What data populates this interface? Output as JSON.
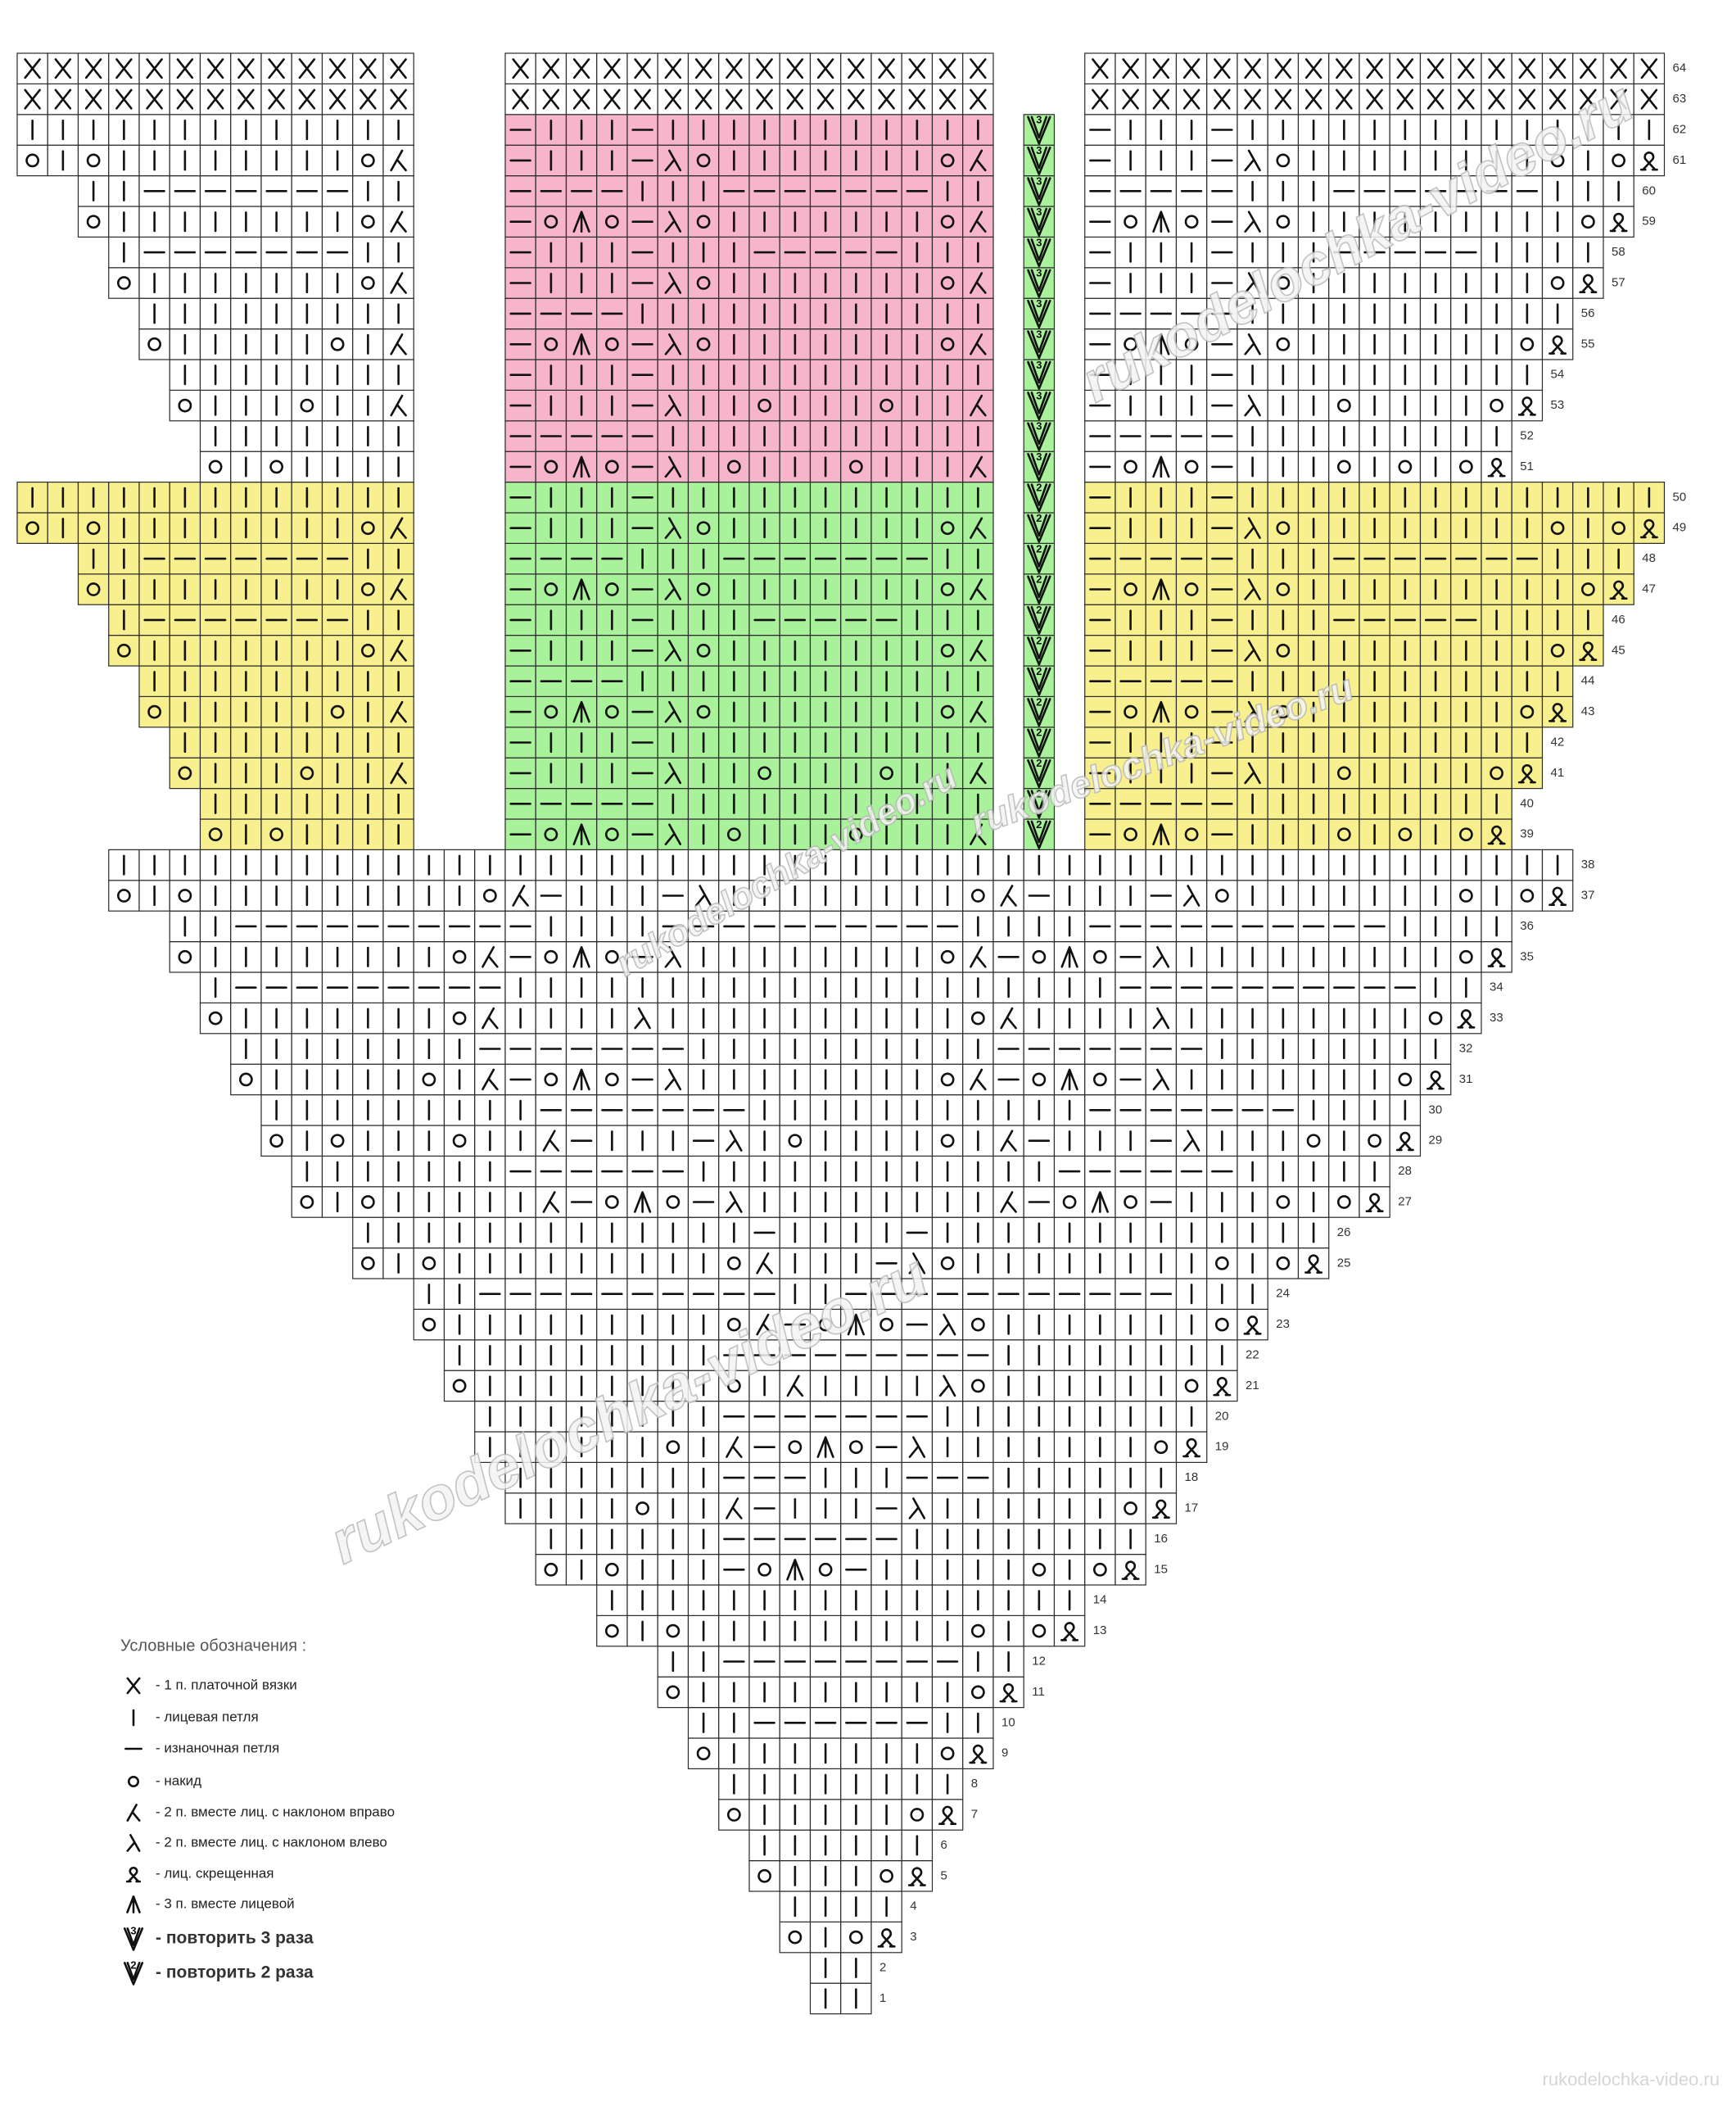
{
  "watermark": "rukodelochka-video.ru",
  "colors": {
    "w": "#ffffff",
    "y": "#f8f08e",
    "g": "#a9f29b",
    "p": "#f7b5cb"
  },
  "legend": {
    "title": "Условные обозначения :",
    "items": [
      {
        "symbol": "X",
        "text": "- 1 п. платочной вязки"
      },
      {
        "symbol": "k",
        "text": "- лицевая петля"
      },
      {
        "symbol": "p",
        "text": "- изнаночная петля"
      },
      {
        "symbol": "o",
        "text": "- накид"
      },
      {
        "symbol": "r",
        "text": "- 2 п. вместе лиц. с наклоном вправо"
      },
      {
        "symbol": "l",
        "text": "- 2 п. вместе лиц. с наклоном влево"
      },
      {
        "symbol": "q",
        "text": "- лиц. скрещенная"
      },
      {
        "symbol": "t",
        "text": "- 3 п. вместе лицевой"
      },
      {
        "symbol": "b",
        "text": "- повторить 3 раза",
        "count": 3
      },
      {
        "symbol": "a",
        "text": "- повторить 2 раза",
        "count": 2
      }
    ]
  },
  "rows": [
    {
      "number": 1,
      "cells": [
        "kk",
        "w"
      ]
    },
    {
      "number": 2,
      "cells": [
        "kk",
        "w"
      ]
    },
    {
      "number": 3,
      "cells": [
        "okoq",
        "w"
      ]
    },
    {
      "number": 4,
      "cells": [
        "kkkk",
        "w"
      ]
    },
    {
      "number": 5,
      "cells": [
        "okkkoq",
        "w"
      ]
    },
    {
      "number": 6,
      "cells": [
        "kkkkkk",
        "w"
      ]
    },
    {
      "number": 7,
      "cells": [
        "okkkkkoq",
        "w"
      ]
    },
    {
      "number": 8,
      "cells": [
        "kkkkkkkk",
        "w"
      ]
    },
    {
      "number": 9,
      "cells": [
        "okkkkkkkoq",
        "w"
      ]
    },
    {
      "number": 10,
      "cells": [
        "kkppppppkk",
        "w"
      ]
    },
    {
      "number": 11,
      "cells": [
        "okkkkkkkkkoq",
        "w"
      ]
    },
    {
      "number": 12,
      "cells": [
        "kkppppppppkk",
        "w"
      ]
    },
    {
      "number": 13,
      "cells": [
        "okokkkkkkkkkokoq",
        "w"
      ]
    },
    {
      "number": 14,
      "cells": [
        "kkkkkkkkkkkkkkkk",
        "w"
      ]
    },
    {
      "number": 15,
      "cells": [
        "okokkkpotopkkkkkokoq",
        "w"
      ]
    },
    {
      "number": 16,
      "cells": [
        "kkkkkkppppppkkkkkkkk",
        "w"
      ]
    },
    {
      "number": 17,
      "cells": [
        "kkkkokkrpkkkplkkkkkkoq",
        "w"
      ]
    },
    {
      "number": 18,
      "cells": [
        "kkkkkkkpppkkkpppkkkkkk",
        "w"
      ]
    },
    {
      "number": 19,
      "cells": [
        "kkkkkkokrpotoplkkkkkkkoq",
        "w"
      ]
    },
    {
      "number": 20,
      "cells": [
        "kkkkkkkkpppppppkkkkkkkkk",
        "w"
      ]
    },
    {
      "number": 21,
      "cells": [
        "okkkkkkkkokrkkkklokkkkkkoq",
        "w"
      ]
    },
    {
      "number": 22,
      "cells": [
        "kkkkkkkkkpppppppppkkkkkkkk",
        "w"
      ]
    },
    {
      "number": 23,
      "cells": [
        "okkkkkkkkkorpotoplokkkkkkkoq",
        "w"
      ]
    },
    {
      "number": 24,
      "cells": [
        "kkppppppppppkkpppppppppppkkk",
        "w"
      ]
    },
    {
      "number": 25,
      "cells": [
        "okokkkkkkkkkorkkkplokkkkkkkkokoq",
        "w"
      ]
    },
    {
      "number": 26,
      "cells": [
        "kkkkkkkkkkkkkpkkkkpkkkkkkkkkkkkk",
        "w"
      ]
    },
    {
      "number": 27,
      "cells": [
        "okokkkkkrpotoplkkkkkkkkrpotopkkkokoq",
        "w"
      ]
    },
    {
      "number": 28,
      "cells": [
        "kkkkkkkppppppkkkkkkkkkkkkppppppkkkkk",
        "w"
      ]
    },
    {
      "number": 29,
      "cells": [
        "okokkkokkrpkkkplkokkkkokrpkkkplkkkokoq",
        "w"
      ]
    },
    {
      "number": 30,
      "cells": [
        "kkkkkkkkkpppppppkkkkkkkkkkkpppppppkkkk",
        "w"
      ]
    },
    {
      "number": 31,
      "cells": [
        "okkkkkokrpotoplkkkkkkkkorpotoplkkkkkkkoq",
        "w"
      ]
    },
    {
      "number": 32,
      "cells": [
        "kkkkkkkkpppppppkkkkkkkkkkpppppppkkkkkkkk",
        "w"
      ]
    },
    {
      "number": 33,
      "cells": [
        "okkkkkkkorkkkklkkkkkkkkkkorkkkklkkkkkkkkoq",
        "w"
      ]
    },
    {
      "number": 34,
      "cells": [
        "kpppppppppkkkkkkkkkkkkkkkkkkkkppppppppppkk",
        "w"
      ]
    },
    {
      "number": 35,
      "cells": [
        "okkkkkkkkorpotoplkkkkkkkkorpotoplkkkkkkkkkoq",
        "w"
      ]
    },
    {
      "number": 36,
      "cells": [
        "kkppppppppppkkkkppppppppppkkkkppppppppppkkkk",
        "w"
      ]
    },
    {
      "number": 37,
      "cells": [
        "okokkkkkkkkkorpkkkplkkkkkkkkorpkkkplokkkkkkkokoq",
        "w"
      ]
    },
    {
      "number": 38,
      "cells": [
        "kkkkkkkkkkkkkkkkkkkkkkkkkkkkkkkkkkkkkkkkkkkkkkkk",
        "w"
      ]
    },
    {
      "number": 39,
      "left": [
        "okokkkk",
        "y"
      ],
      "middle": [
        "potoplkokkkokkkr",
        "g"
      ],
      "repeat": [
        "a",
        "g"
      ],
      "right": [
        "potopkkkokokoq",
        "y"
      ]
    },
    {
      "number": 40,
      "left": [
        "kkkkkkk",
        "y"
      ],
      "middle": [
        "pppppkkkkkkkkkkk",
        "g"
      ],
      "repeat": [
        "a",
        "g"
      ],
      "right": [
        "pppppkkkkkkkkk",
        "y"
      ]
    },
    {
      "number": 41,
      "left": [
        "okkkokkr",
        "y"
      ],
      "middle": [
        "pkkkplkkokkkokkr",
        "g"
      ],
      "repeat": [
        "a",
        "g"
      ],
      "right": [
        "pkkkplkkokkkkoq",
        "y"
      ]
    },
    {
      "number": 42,
      "left": [
        "kkkkkkkk",
        "y"
      ],
      "middle": [
        "pkkkpkkkkkkkkkkk",
        "g"
      ],
      "repeat": [
        "a",
        "g"
      ],
      "right": [
        "pkkkpkkkkkkkkkk",
        "y"
      ]
    },
    {
      "number": 43,
      "left": [
        "okkkkkokr",
        "y"
      ],
      "middle": [
        "potoplokkkkkkkor",
        "g"
      ],
      "repeat": [
        "a",
        "g"
      ],
      "right": [
        "potoplokkkkkkkoq",
        "y"
      ]
    },
    {
      "number": 44,
      "left": [
        "kkkkkkkkk",
        "y"
      ],
      "middle": [
        "ppppkkkkkkkkkkkk",
        "g"
      ],
      "repeat": [
        "a",
        "g"
      ],
      "right": [
        "pppppkkkkkkkkkkk",
        "y"
      ]
    },
    {
      "number": 45,
      "left": [
        "okkkkkkkor",
        "y"
      ],
      "middle": [
        "pkkkplokkkkkkkor",
        "g"
      ],
      "repeat": [
        "a",
        "g"
      ],
      "right": [
        "pkkkplokkkkkkkkoq",
        "y"
      ]
    },
    {
      "number": 46,
      "left": [
        "kpppppppkk",
        "y"
      ],
      "middle": [
        "pkkkpkkkpppppkkk",
        "g"
      ],
      "repeat": [
        "a",
        "g"
      ],
      "right": [
        "pkkkpkkkpppppkkkk",
        "y"
      ]
    },
    {
      "number": 47,
      "left": [
        "okkkkkkkkor",
        "y"
      ],
      "middle": [
        "potoplokkkkkkkor",
        "g"
      ],
      "repeat": [
        "a",
        "g"
      ],
      "right": [
        "potoplokkkkkkkkkoq",
        "y"
      ]
    },
    {
      "number": 48,
      "left": [
        "kkpppppppkk",
        "y"
      ],
      "middle": [
        "ppppkkkpppppppkk",
        "g"
      ],
      "repeat": [
        "a",
        "g"
      ],
      "right": [
        "pppppkkkpppppppkkk",
        "y"
      ]
    },
    {
      "number": 49,
      "left": [
        "okokkkkkkkkor",
        "y"
      ],
      "middle": [
        "pkkkplokkkkkkkor",
        "g"
      ],
      "repeat": [
        "a",
        "g"
      ],
      "right": [
        "pkkkplokkkkkkkkokoq",
        "y"
      ]
    },
    {
      "number": 50,
      "left": [
        "kkkkkkkkkkkkk",
        "y"
      ],
      "middle": [
        "pkkkpkkkkkkkkkkk",
        "g"
      ],
      "repeat": [
        "a",
        "g"
      ],
      "right": [
        "pkkkpkkkkkkkkkkkkkk",
        "y"
      ]
    },
    {
      "number": 51,
      "left": [
        "okokkkk",
        "w"
      ],
      "middle": [
        "potoplkokkkokkkr",
        "p"
      ],
      "repeat": [
        "b",
        "g"
      ],
      "right": [
        "potopkkkokokoq",
        "w"
      ]
    },
    {
      "number": 52,
      "left": [
        "kkkkkkk",
        "w"
      ],
      "middle": [
        "pppppkkkkkkkkkkk",
        "p"
      ],
      "repeat": [
        "b",
        "g"
      ],
      "right": [
        "pppppkkkkkkkkk",
        "w"
      ]
    },
    {
      "number": 53,
      "left": [
        "okkkokkr",
        "w"
      ],
      "middle": [
        "pkkkplkkokkkokkr",
        "p"
      ],
      "repeat": [
        "b",
        "g"
      ],
      "right": [
        "pkkkplkkokkkkoq",
        "w"
      ]
    },
    {
      "number": 54,
      "left": [
        "kkkkkkkk",
        "w"
      ],
      "middle": [
        "pkkkpkkkkkkkkkkk",
        "p"
      ],
      "repeat": [
        "b",
        "g"
      ],
      "right": [
        "pkkkpkkkkkkkkkk",
        "w"
      ]
    },
    {
      "number": 55,
      "left": [
        "okkkkkokr",
        "w"
      ],
      "middle": [
        "potoplokkkkkkkor",
        "p"
      ],
      "repeat": [
        "b",
        "g"
      ],
      "right": [
        "potoplokkkkkkkoq",
        "w"
      ]
    },
    {
      "number": 56,
      "left": [
        "kkkkkkkkk",
        "w"
      ],
      "middle": [
        "ppppkkkkkkkkkkkk",
        "p"
      ],
      "repeat": [
        "b",
        "g"
      ],
      "right": [
        "pppppkkkkkkkkkkk",
        "w"
      ]
    },
    {
      "number": 57,
      "left": [
        "okkkkkkkor",
        "w"
      ],
      "middle": [
        "pkkkplokkkkkkkor",
        "p"
      ],
      "repeat": [
        "b",
        "g"
      ],
      "right": [
        "pkkkplokkkkkkkkoq",
        "w"
      ]
    },
    {
      "number": 58,
      "left": [
        "kpppppppkk",
        "w"
      ],
      "middle": [
        "pkkkpkkkpppppkkk",
        "p"
      ],
      "repeat": [
        "b",
        "g"
      ],
      "right": [
        "pkkkpkkkpppppkkkk",
        "w"
      ]
    },
    {
      "number": 59,
      "left": [
        "okkkkkkkkor",
        "w"
      ],
      "middle": [
        "potoplokkkkkkkor",
        "p"
      ],
      "repeat": [
        "b",
        "g"
      ],
      "right": [
        "potoplokkkkkkkkkoq",
        "w"
      ]
    },
    {
      "number": 60,
      "left": [
        "kkpppppppkk",
        "w"
      ],
      "middle": [
        "ppppkkkpppppppkk",
        "p"
      ],
      "repeat": [
        "b",
        "g"
      ],
      "right": [
        "pppppkkkpppppppkkk",
        "w"
      ]
    },
    {
      "number": 61,
      "left": [
        "okokkkkkkkkor",
        "w"
      ],
      "middle": [
        "pkkkplokkkkkkkor",
        "p"
      ],
      "repeat": [
        "b",
        "g"
      ],
      "right": [
        "pkkkplokkkkkkkkokoq",
        "w"
      ]
    },
    {
      "number": 62,
      "left": [
        "kkkkkkkkkkkkk",
        "w"
      ],
      "middle": [
        "pkkkpkkkkkkkkkkk",
        "p"
      ],
      "repeat": [
        "b",
        "g"
      ],
      "right": [
        "pkkkpkkkkkkkkkkkkkk",
        "w"
      ]
    },
    {
      "number": 63,
      "left": [
        "XXXXXXXXXXXXX",
        "w"
      ],
      "middle": [
        "XXXXXXXXXXXXXXXX",
        "w"
      ],
      "right": [
        "XXXXXXXXXXXXXXXXXXX",
        "w"
      ]
    },
    {
      "number": 64,
      "left": [
        "XXXXXXXXXXXXX",
        "w"
      ],
      "middle": [
        "XXXXXXXXXXXXXXXX",
        "w"
      ],
      "right": [
        "XXXXXXXXXXXXXXXXXXX",
        "w"
      ]
    }
  ]
}
